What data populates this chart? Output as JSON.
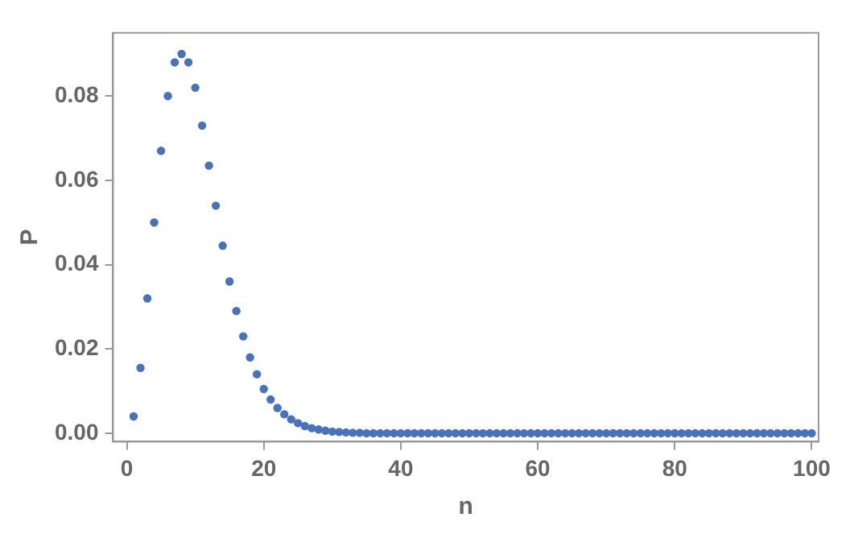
{
  "chart_data": {
    "type": "scatter",
    "xlabel": "n",
    "ylabel": "P",
    "x": [
      1,
      2,
      3,
      4,
      5,
      6,
      7,
      8,
      9,
      10,
      11,
      12,
      13,
      14,
      15,
      16,
      17,
      18,
      19,
      20,
      21,
      22,
      23,
      24,
      25,
      26,
      27,
      28,
      29,
      30,
      31,
      32,
      33,
      34,
      35,
      36,
      37,
      38,
      39,
      40,
      41,
      42,
      43,
      44,
      45,
      46,
      47,
      48,
      49,
      50,
      51,
      52,
      53,
      54,
      55,
      56,
      57,
      58,
      59,
      60,
      61,
      62,
      63,
      64,
      65,
      66,
      67,
      68,
      69,
      70,
      71,
      72,
      73,
      74,
      75,
      76,
      77,
      78,
      79,
      80,
      81,
      82,
      83,
      84,
      85,
      86,
      87,
      88,
      89,
      90,
      91,
      92,
      93,
      94,
      95,
      96,
      97,
      98,
      99,
      100
    ],
    "series": [
      {
        "color": "#4a72b8",
        "values": [
          0.004,
          0.0155,
          0.032,
          0.05,
          0.067,
          0.08,
          0.088,
          0.09,
          0.088,
          0.082,
          0.073,
          0.0635,
          0.054,
          0.0445,
          0.036,
          0.029,
          0.023,
          0.018,
          0.014,
          0.0105,
          0.008,
          0.006,
          0.0045,
          0.0033,
          0.0024,
          0.0017,
          0.0012,
          0.0009,
          0.0006,
          0.0004,
          0.0003,
          0.0002,
          0.0001,
          0.0001,
          0,
          0,
          0,
          0,
          0,
          0,
          0,
          0,
          0,
          0,
          0,
          0,
          0,
          0,
          0,
          0,
          0,
          0,
          0,
          0,
          0,
          0,
          0,
          0,
          0,
          0,
          0,
          0,
          0,
          0,
          0,
          0,
          0,
          0,
          0,
          0,
          0,
          0,
          0,
          0,
          0,
          0,
          0,
          0,
          0,
          0,
          0,
          0,
          0,
          0,
          0,
          0,
          0,
          0,
          0,
          0,
          0,
          0,
          0,
          0,
          0,
          0,
          0,
          0,
          0,
          0
        ]
      }
    ],
    "xlim": [
      -2,
      101
    ],
    "ylim": [
      -0.002,
      0.095
    ],
    "xticks": [
      0,
      20,
      40,
      60,
      80,
      100
    ],
    "yticks": [
      {
        "value": 0,
        "label": "0.00"
      },
      {
        "value": 0.02,
        "label": "0.02"
      },
      {
        "value": 0.04,
        "label": "0.04"
      },
      {
        "value": 0.06,
        "label": "0.06"
      },
      {
        "value": 0.08,
        "label": "0.08"
      }
    ],
    "grid": false,
    "legend": false,
    "marker": "circle"
  }
}
